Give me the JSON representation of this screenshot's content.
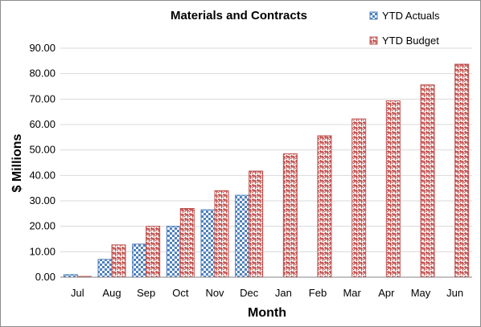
{
  "chart_data": {
    "type": "bar",
    "title": "Materials and Contracts",
    "xlabel": "Month",
    "ylabel": "$ Millions",
    "ylim": [
      0,
      90
    ],
    "yticks": [
      "0.00",
      "10.00",
      "20.00",
      "30.00",
      "40.00",
      "50.00",
      "60.00",
      "70.00",
      "80.00",
      "90.00"
    ],
    "grid": true,
    "legend_position": "top-right",
    "categories": [
      "Jul",
      "Aug",
      "Sep",
      "Oct",
      "Nov",
      "Dec",
      "Jan",
      "Feb",
      "Mar",
      "Apr",
      "May",
      "Jun"
    ],
    "series": [
      {
        "name": "YTD Actuals",
        "color": "#4f81bd",
        "pattern": "checkerboard",
        "values": [
          1.0,
          7.0,
          13.0,
          20.0,
          26.5,
          32.2,
          null,
          null,
          null,
          null,
          null,
          null
        ]
      },
      {
        "name": "YTD Budget",
        "color": "#c0504d",
        "pattern": "weave",
        "values": [
          0.3,
          12.7,
          20.0,
          27.0,
          34.0,
          41.7,
          48.5,
          55.6,
          62.2,
          69.3,
          75.6,
          83.7
        ]
      }
    ]
  }
}
